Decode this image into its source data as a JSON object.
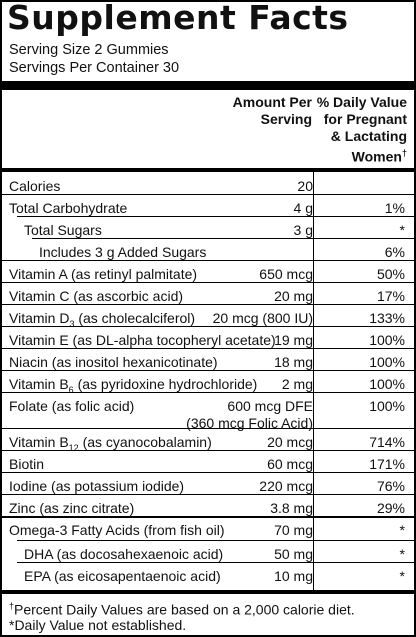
{
  "title": "Supplement Facts",
  "serving_size": "Serving Size 2 Gummies",
  "servings_per_container": "Servings Per Container 30",
  "headers": {
    "amount": [
      "Amount Per",
      "Serving"
    ],
    "dv": [
      "% Daily Value",
      "for Pregnant",
      "& Lactating",
      "Women"
    ],
    "dv_mark": "†"
  },
  "rows": [
    {
      "name": "Calories",
      "amount": "20",
      "dv": ""
    },
    {
      "name": "Total Carbohydrate",
      "amount": "4 g",
      "dv": "1%"
    },
    {
      "name": "Total Sugars",
      "amount": "3 g",
      "dv": "*"
    },
    {
      "name": "Includes 3 g Added Sugars",
      "amount": "",
      "dv": "6%"
    },
    {
      "name": "Vitamin A (as retinyl palmitate)",
      "amount": "650 mcg",
      "dv": "50%"
    },
    {
      "name": "Vitamin C (as ascorbic acid)",
      "amount": "20 mg",
      "dv": "17%"
    },
    {
      "name_pre": "Vitamin D",
      "name_sub": "3",
      "name_post": " (as cholecalciferol)",
      "amount": "20 mcg (800 IU)",
      "dv": "133%"
    },
    {
      "name": "Vitamin E (as DL-alpha tocopheryl acetate)",
      "amount": "19 mg",
      "dv": "100%"
    },
    {
      "name": "Niacin (as inositol hexanicotinate)",
      "amount": "18 mg",
      "dv": "100%"
    },
    {
      "name_pre": "Vitamin B",
      "name_sub": "6",
      "name_post": " (as pyridoxine hydrochloride)",
      "amount": "2 mg",
      "dv": "100%"
    },
    {
      "name": "Folate (as folic acid)",
      "amount": "600 mcg DFE",
      "amount2": "(360 mcg Folic Acid)",
      "dv": "100%"
    },
    {
      "name_pre": "Vitamin B",
      "name_sub": "12",
      "name_post": " (as cyanocobalamin)",
      "amount": "20 mcg",
      "dv": "714%"
    },
    {
      "name": "Biotin",
      "amount": "60 mcg",
      "dv": "171%"
    },
    {
      "name": "Iodine (as potassium iodide)",
      "amount": "220 mcg",
      "dv": "76%"
    },
    {
      "name": "Zinc (as zinc citrate)",
      "amount": "3.8 mg",
      "dv": "29%"
    },
    {
      "name": "Omega-3 Fatty Acids (from fish oil)",
      "amount": "70 mg",
      "dv": "*"
    },
    {
      "name": "DHA (as docosahexaenoic acid)",
      "amount": "50 mg",
      "dv": "*"
    },
    {
      "name": "EPA (as eicosapentaenoic acid)",
      "amount": "10 mg",
      "dv": "*"
    }
  ],
  "footnotes": {
    "f1_mark": "†",
    "f1": "Percent Daily Values are based on a 2,000 calorie diet.",
    "f2": "*Daily Value not established."
  }
}
